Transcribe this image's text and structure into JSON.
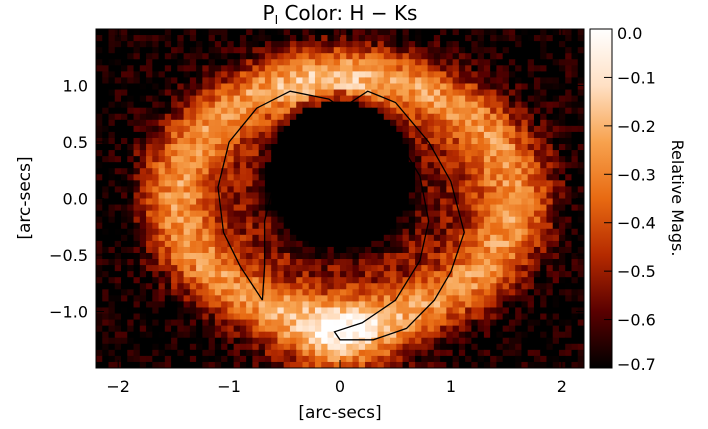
{
  "chart_data": {
    "type": "heatmap",
    "title_main": "P",
    "title_sub": "I",
    "title_rest": " Color: H − Ks",
    "xlabel": "[arc-secs]",
    "ylabel": "[arc-secs]",
    "xlim": [
      -2.2,
      2.2
    ],
    "ylim": [
      -1.5,
      1.5
    ],
    "x_ticks": [
      -2,
      -1,
      0,
      1,
      2
    ],
    "x_tick_labels": [
      "−2",
      "−1",
      "0",
      "1",
      "2"
    ],
    "y_ticks": [
      1.0,
      0.5,
      0.0,
      -0.5,
      -1.0
    ],
    "y_tick_labels": [
      "1.0",
      "0.5",
      "0.0",
      "−0.5",
      "−1.0"
    ],
    "colorbar": {
      "label": "Relative Mags.",
      "range": [
        -0.7,
        0.0
      ],
      "ticks": [
        0.0,
        -0.1,
        -0.2,
        -0.3,
        -0.4,
        -0.5,
        -0.6,
        -0.7
      ],
      "tick_labels": [
        "0.0",
        "−0.1",
        "−0.2",
        "−0.3",
        "−0.4",
        "−0.5",
        "−0.6",
        "−0.7"
      ],
      "colormap": "heat",
      "colors": [
        "#000000",
        "#5a0000",
        "#b52a00",
        "#e86a12",
        "#f7a24e",
        "#ffe0c4",
        "#ffffff"
      ]
    },
    "mask": {
      "center": [
        0.0,
        0.2
      ],
      "radius": 0.66
    },
    "ring": {
      "center": [
        0.05,
        0.0
      ],
      "rx": 1.62,
      "ry": 1.15
    },
    "contour_color": "#000000",
    "contours": [
      [
        [
          -0.7,
          -0.9
        ],
        [
          -0.9,
          -0.6
        ],
        [
          -1.05,
          -0.3
        ],
        [
          -1.1,
          0.1
        ],
        [
          -1.0,
          0.5
        ],
        [
          -0.75,
          0.8
        ],
        [
          -0.45,
          0.95
        ],
        [
          -0.1,
          0.88
        ],
        [
          0.05,
          0.78
        ],
        [
          -0.1,
          0.62
        ],
        [
          -0.35,
          0.45
        ],
        [
          -0.58,
          0.2
        ],
        [
          -0.68,
          -0.2
        ],
        [
          -0.68,
          -0.6
        ],
        [
          -0.7,
          -0.9
        ]
      ],
      [
        [
          0.05,
          0.82
        ],
        [
          0.25,
          0.95
        ],
        [
          0.5,
          0.85
        ],
        [
          0.8,
          0.5
        ],
        [
          1.0,
          0.15
        ],
        [
          1.12,
          -0.3
        ],
        [
          1.0,
          -0.65
        ],
        [
          0.85,
          -0.9
        ],
        [
          0.6,
          -1.15
        ],
        [
          0.3,
          -1.25
        ],
        [
          0.0,
          -1.25
        ],
        [
          -0.05,
          -1.18
        ],
        [
          0.2,
          -1.1
        ],
        [
          0.5,
          -0.9
        ],
        [
          0.72,
          -0.55
        ],
        [
          0.8,
          -0.2
        ],
        [
          0.72,
          0.2
        ],
        [
          0.5,
          0.55
        ],
        [
          0.3,
          0.72
        ],
        [
          0.05,
          0.82
        ]
      ]
    ]
  }
}
